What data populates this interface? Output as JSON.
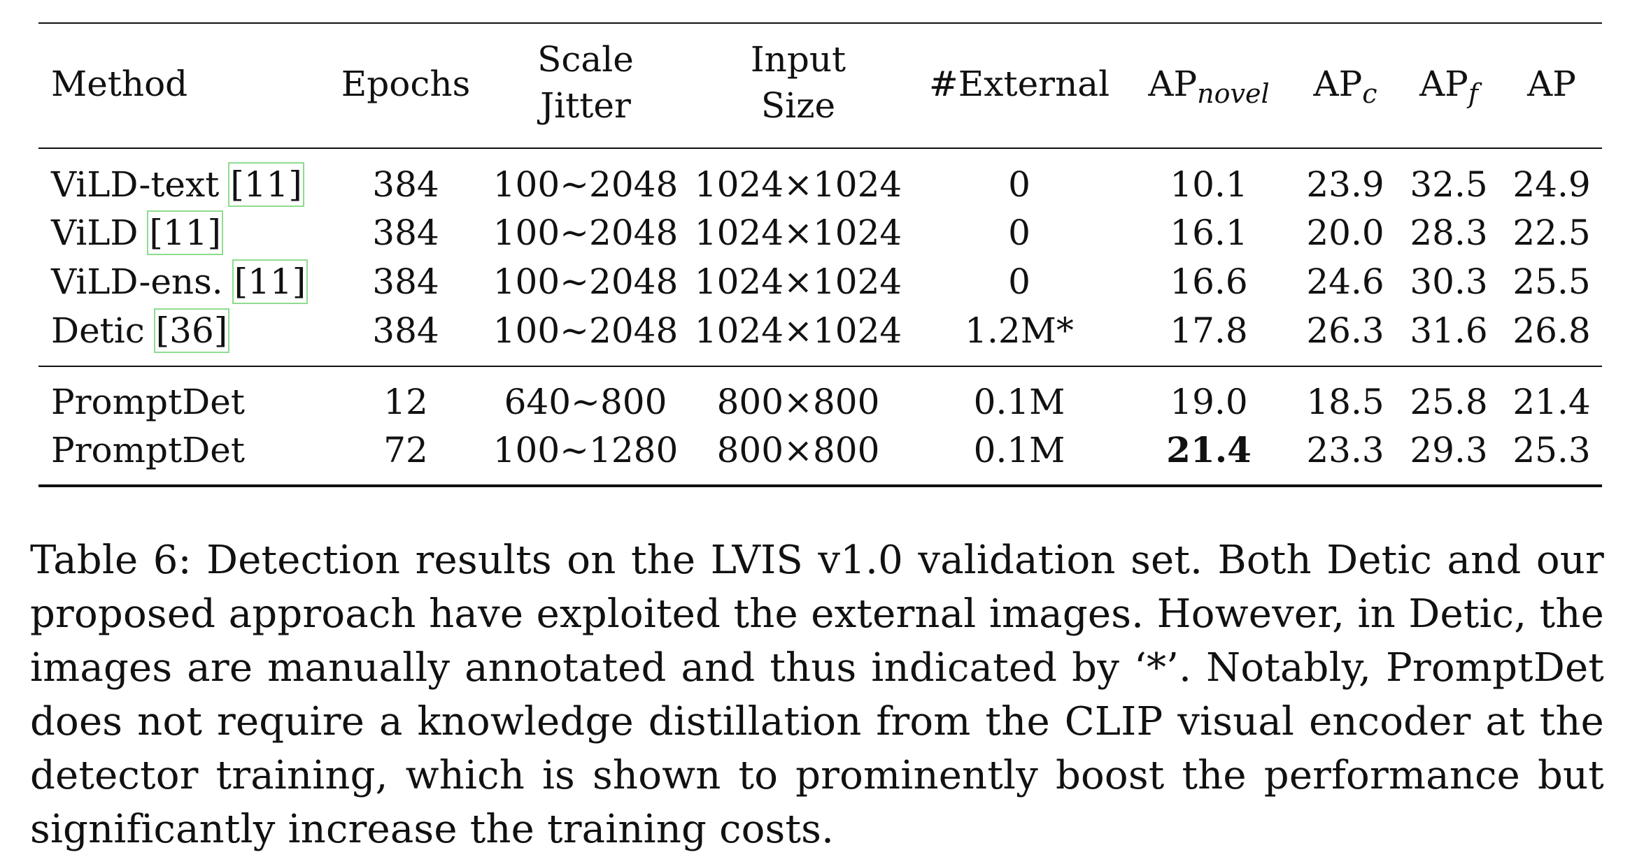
{
  "table": {
    "headers": {
      "method": "Method",
      "epochs": "Epochs",
      "scale_jitter_1": "Scale",
      "scale_jitter_2": "Jitter",
      "input_size_1": "Input",
      "input_size_2": "Size",
      "external": "#External",
      "ap_novel_main": "AP",
      "ap_novel_sub": "novel",
      "ap_c_main": "AP",
      "ap_c_sub": "c",
      "ap_f_main": "AP",
      "ap_f_sub": "f",
      "ap": "AP"
    },
    "group1": [
      {
        "method": "ViLD-text",
        "cite": "[11]",
        "epochs": "384",
        "scale_jitter": "100∼2048",
        "input_size": "1024×1024",
        "external": "0",
        "ap_novel": "10.1",
        "ap_c": "23.9",
        "ap_f": "32.5",
        "ap": "24.9"
      },
      {
        "method": "ViLD",
        "cite": "[11]",
        "epochs": "384",
        "scale_jitter": "100∼2048",
        "input_size": "1024×1024",
        "external": "0",
        "ap_novel": "16.1",
        "ap_c": "20.0",
        "ap_f": "28.3",
        "ap": "22.5"
      },
      {
        "method": "ViLD-ens.",
        "cite": "[11]",
        "epochs": "384",
        "scale_jitter": "100∼2048",
        "input_size": "1024×1024",
        "external": "0",
        "ap_novel": "16.6",
        "ap_c": "24.6",
        "ap_f": "30.3",
        "ap": "25.5"
      },
      {
        "method": "Detic",
        "cite": "[36]",
        "epochs": "384",
        "scale_jitter": "100∼2048",
        "input_size": "1024×1024",
        "external": "1.2M*",
        "ap_novel": "17.8",
        "ap_c": "26.3",
        "ap_f": "31.6",
        "ap": "26.8"
      }
    ],
    "group2": [
      {
        "method": "PromptDet",
        "epochs": "12",
        "scale_jitter": "640∼800",
        "input_size": "800×800",
        "external": "0.1M",
        "ap_novel": "19.0",
        "ap_c": "18.5",
        "ap_f": "25.8",
        "ap": "21.4"
      },
      {
        "method": "PromptDet",
        "epochs": "72",
        "scale_jitter": "100∼1280",
        "input_size": "800×800",
        "external": "0.1M",
        "ap_novel": "21.4",
        "ap_c": "23.3",
        "ap_f": "29.3",
        "ap": "25.3"
      }
    ]
  },
  "caption": "Table 6: Detection results on the LVIS v1.0 validation set. Both Detic and our proposed approach have exploited the external images. However, in Detic, the images are manually annotated and thus indicated by ‘*’. Notably, PromptDet does not require a knowledge distillation from the CLIP visual encoder at the detector training, which is shown to prominently boost the performance but significantly increase the training costs."
}
